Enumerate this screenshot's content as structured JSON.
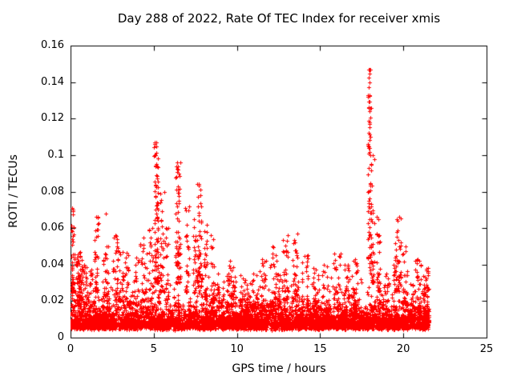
{
  "chart_data": {
    "type": "scatter",
    "title": "Day 288 of 2022, Rate Of TEC Index for receiver xmis",
    "xlabel": "GPS time / hours",
    "ylabel": "ROTI / TECUs",
    "xlim": [
      0,
      25
    ],
    "ylim": [
      0,
      0.16
    ],
    "xticks": [
      0,
      5,
      10,
      15,
      20,
      25
    ],
    "xtick_labels": [
      "0",
      "5",
      "10",
      "15",
      "20",
      "25"
    ],
    "yticks": [
      0,
      0.02,
      0.04,
      0.06,
      0.08,
      0.1,
      0.12,
      0.14,
      0.16
    ],
    "ytick_labels": [
      "0",
      "0.02",
      "0.04",
      "0.06",
      "0.08",
      "0.1",
      "0.12",
      "0.14",
      "0.16"
    ],
    "grid": false,
    "legend": "none",
    "marker": "+",
    "marker_size_px": 5,
    "series_color": "#ff0000",
    "axis_color": "#000000",
    "background_color": "#ffffff",
    "data_extent_hours": [
      0.02,
      21.55
    ],
    "seed": 288,
    "baseline": {
      "n": 5200,
      "x0": 0.02,
      "x1": 21.55,
      "y_floor": 0.004,
      "exp_scale": 0.0048,
      "jitter": 0.003,
      "cap": 0.036
    },
    "clusters": [
      {
        "x": 0.12,
        "spread": 0.06,
        "n": 35,
        "y0": 0.025,
        "y1": 0.071
      },
      {
        "x": 0.45,
        "spread": 0.25,
        "n": 70,
        "y0": 0.02,
        "y1": 0.047
      },
      {
        "x": 1.0,
        "spread": 0.3,
        "n": 40,
        "y0": 0.018,
        "y1": 0.04
      },
      {
        "x": 1.55,
        "spread": 0.12,
        "n": 30,
        "y0": 0.025,
        "y1": 0.066
      },
      {
        "x": 2.1,
        "spread": 0.2,
        "n": 35,
        "y0": 0.02,
        "y1": 0.05
      },
      {
        "x": 2.75,
        "spread": 0.25,
        "n": 45,
        "y0": 0.02,
        "y1": 0.056
      },
      {
        "x": 3.3,
        "spread": 0.2,
        "n": 30,
        "y0": 0.018,
        "y1": 0.047
      },
      {
        "x": 3.9,
        "spread": 0.2,
        "n": 25,
        "y0": 0.018,
        "y1": 0.044
      },
      {
        "x": 4.4,
        "spread": 0.2,
        "n": 30,
        "y0": 0.02,
        "y1": 0.055
      },
      {
        "x": 4.8,
        "spread": 0.15,
        "n": 25,
        "y0": 0.02,
        "y1": 0.06
      },
      {
        "x": 5.15,
        "spread": 0.12,
        "n": 80,
        "y0": 0.03,
        "y1": 0.107
      },
      {
        "x": 5.5,
        "spread": 0.12,
        "n": 35,
        "y0": 0.025,
        "y1": 0.08
      },
      {
        "x": 5.8,
        "spread": 0.1,
        "n": 20,
        "y0": 0.02,
        "y1": 0.06
      },
      {
        "x": 6.45,
        "spread": 0.15,
        "n": 65,
        "y0": 0.03,
        "y1": 0.096
      },
      {
        "x": 7.0,
        "spread": 0.12,
        "n": 30,
        "y0": 0.025,
        "y1": 0.072
      },
      {
        "x": 7.45,
        "spread": 0.1,
        "n": 25,
        "y0": 0.025,
        "y1": 0.065
      },
      {
        "x": 7.75,
        "spread": 0.15,
        "n": 55,
        "y0": 0.028,
        "y1": 0.084
      },
      {
        "x": 8.1,
        "spread": 0.12,
        "n": 30,
        "y0": 0.022,
        "y1": 0.062
      },
      {
        "x": 8.55,
        "spread": 0.12,
        "n": 25,
        "y0": 0.02,
        "y1": 0.056
      },
      {
        "x": 9.0,
        "spread": 0.2,
        "n": 25,
        "y0": 0.015,
        "y1": 0.035
      },
      {
        "x": 9.65,
        "spread": 0.3,
        "n": 45,
        "y0": 0.018,
        "y1": 0.042
      },
      {
        "x": 10.4,
        "spread": 0.25,
        "n": 30,
        "y0": 0.014,
        "y1": 0.034
      },
      {
        "x": 11.0,
        "spread": 0.25,
        "n": 25,
        "y0": 0.015,
        "y1": 0.035
      },
      {
        "x": 11.55,
        "spread": 0.2,
        "n": 30,
        "y0": 0.016,
        "y1": 0.043
      },
      {
        "x": 12.3,
        "spread": 0.3,
        "n": 45,
        "y0": 0.018,
        "y1": 0.05
      },
      {
        "x": 12.9,
        "spread": 0.18,
        "n": 35,
        "y0": 0.02,
        "y1": 0.056
      },
      {
        "x": 13.5,
        "spread": 0.18,
        "n": 35,
        "y0": 0.02,
        "y1": 0.057
      },
      {
        "x": 14.1,
        "spread": 0.2,
        "n": 28,
        "y0": 0.016,
        "y1": 0.045
      },
      {
        "x": 14.7,
        "spread": 0.2,
        "n": 22,
        "y0": 0.015,
        "y1": 0.038
      },
      {
        "x": 15.3,
        "spread": 0.25,
        "n": 25,
        "y0": 0.015,
        "y1": 0.04
      },
      {
        "x": 16.0,
        "spread": 0.22,
        "n": 30,
        "y0": 0.016,
        "y1": 0.046
      },
      {
        "x": 16.6,
        "spread": 0.2,
        "n": 25,
        "y0": 0.015,
        "y1": 0.04
      },
      {
        "x": 17.1,
        "spread": 0.18,
        "n": 25,
        "y0": 0.016,
        "y1": 0.043
      },
      {
        "x": 17.95,
        "spread": 0.1,
        "n": 70,
        "y0": 0.035,
        "y1": 0.147,
        "power": 1.3
      },
      {
        "x": 18.15,
        "spread": 0.1,
        "n": 40,
        "y0": 0.03,
        "y1": 0.1
      },
      {
        "x": 18.5,
        "spread": 0.12,
        "n": 28,
        "y0": 0.025,
        "y1": 0.066
      },
      {
        "x": 19.0,
        "spread": 0.15,
        "n": 20,
        "y0": 0.015,
        "y1": 0.035
      },
      {
        "x": 19.65,
        "spread": 0.22,
        "n": 55,
        "y0": 0.025,
        "y1": 0.066
      },
      {
        "x": 20.1,
        "spread": 0.15,
        "n": 25,
        "y0": 0.018,
        "y1": 0.05
      },
      {
        "x": 20.8,
        "spread": 0.25,
        "n": 40,
        "y0": 0.012,
        "y1": 0.043
      },
      {
        "x": 21.35,
        "spread": 0.18,
        "n": 55,
        "y0": 0.008,
        "y1": 0.038
      }
    ],
    "peaks": [
      [
        5.15,
        0.107
      ],
      [
        5.12,
        0.1
      ],
      [
        5.2,
        0.094
      ],
      [
        6.42,
        0.096
      ],
      [
        6.48,
        0.09
      ],
      [
        7.72,
        0.084
      ],
      [
        7.78,
        0.078
      ],
      [
        17.93,
        0.147
      ],
      [
        17.96,
        0.14
      ],
      [
        17.95,
        0.133
      ],
      [
        18.0,
        0.126
      ],
      [
        17.97,
        0.118
      ],
      [
        18.02,
        0.11
      ],
      [
        17.95,
        0.104
      ],
      [
        18.0,
        0.1
      ],
      [
        0.1,
        0.071
      ],
      [
        0.14,
        0.07
      ],
      [
        1.55,
        0.066
      ],
      [
        2.1,
        0.068
      ],
      [
        18.5,
        0.065
      ],
      [
        19.6,
        0.065
      ]
    ]
  }
}
